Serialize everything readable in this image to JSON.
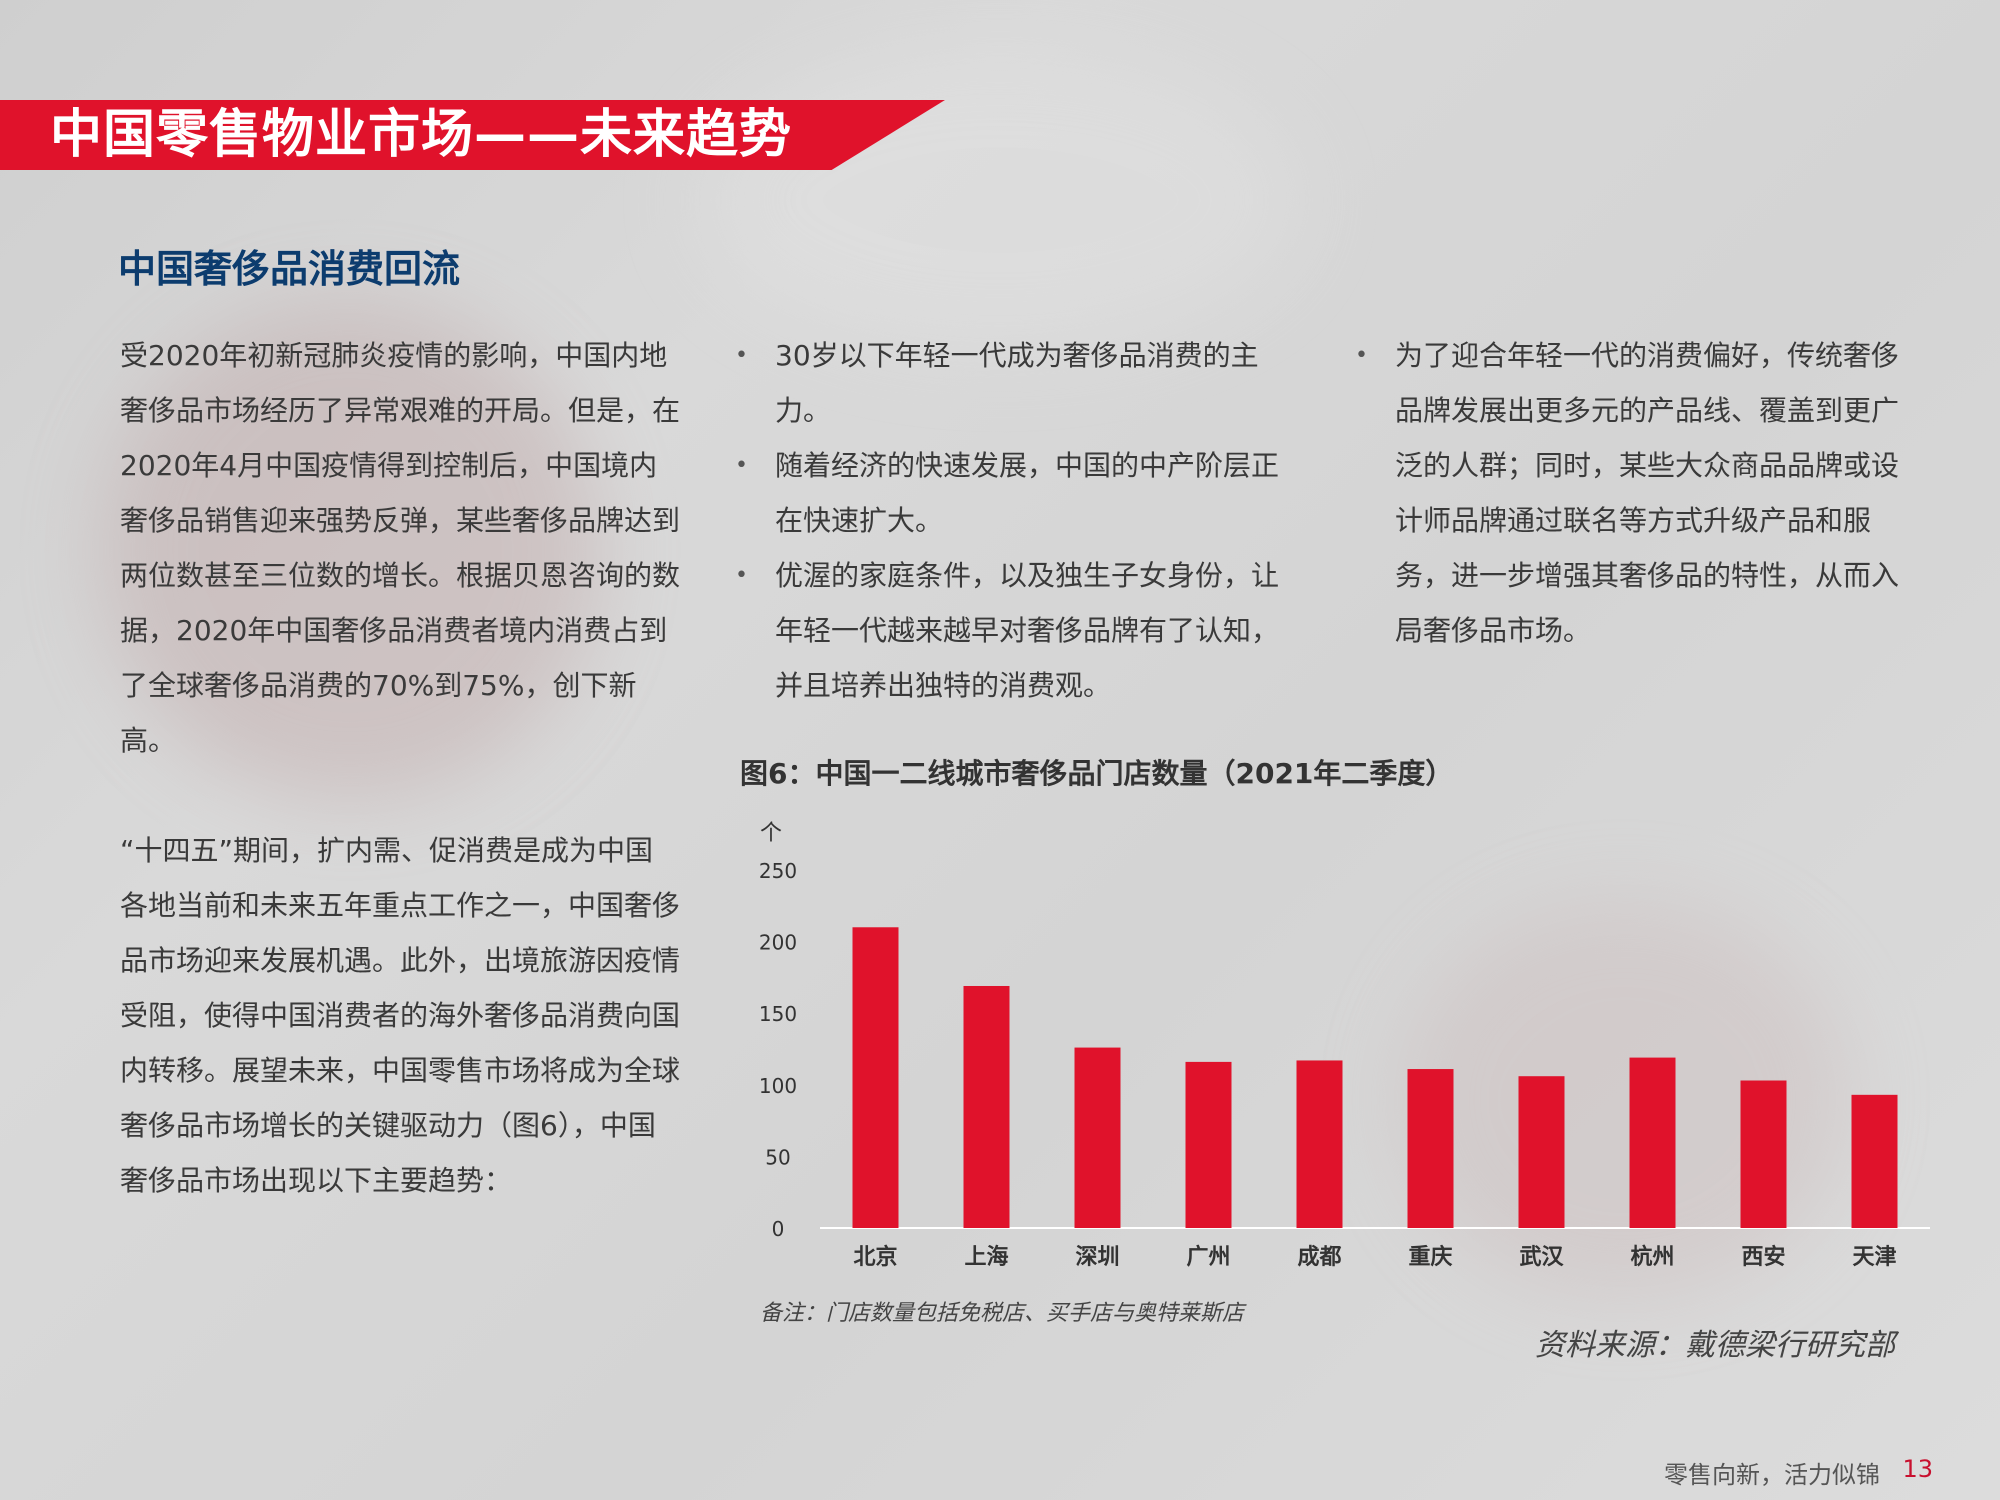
{
  "header": {
    "title": "中国零售物业市场——未来趋势"
  },
  "section": {
    "title": "中国奢侈品消费回流"
  },
  "left_column": {
    "para1": "受2020年初新冠肺炎疫情的影响，中国内地奢侈品市场经历了异常艰难的开局。但是，在2020年4月中国疫情得到控制后，中国境内奢侈品销售迎来强势反弹，某些奢侈品牌达到两位数甚至三位数的增长。根据贝恩咨询的数据，2020年中国奢侈品消费者境内消费占到了全球奢侈品消费的70%到75%，创下新高。",
    "para2": "“十四五”期间，扩内需、促消费是成为中国各地当前和未来五年重点工作之一，中国奢侈品市场迎来发展机遇。此外，出境旅游因疫情受阻，使得中国消费者的海外奢侈品消费向国内转移。展望未来，中国零售市场将成为全球奢侈品市场增长的关键驱动力（图6），中国奢侈品市场出现以下主要趋势："
  },
  "middle_bullets": [
    "30岁以下年轻一代成为奢侈品消费的主力。",
    "随着经济的快速发展，中国的中产阶层正在快速扩大。",
    "优渥的家庭条件，以及独生子女身份，让年轻一代越来越早对奢侈品牌有了认知，并且培养出独特的消费观。"
  ],
  "right_bullets": [
    "为了迎合年轻一代的消费偏好，传统奢侈品牌发展出更多元的产品线、覆盖到更广泛的人群；同时，某些大众商品品牌或设计师品牌通过联名等方式升级产品和服务，进一步增强其奢侈品的特性，从而入局奢侈品市场。"
  ],
  "chart_data": {
    "type": "bar",
    "title": "图6：中国一二线城市奢侈品门店数量（2021年二季度）",
    "ylabel": "个",
    "xlabel": "",
    "categories": [
      "北京",
      "上海",
      "深圳",
      "广州",
      "成都",
      "重庆",
      "武汉",
      "杭州",
      "西安",
      "天津"
    ],
    "values": [
      210,
      169,
      126,
      116,
      117,
      111,
      106,
      119,
      103,
      93
    ],
    "ylim": [
      0,
      250
    ],
    "yticks": [
      0,
      50,
      100,
      150,
      200,
      250
    ],
    "grid": false,
    "bar_color": "#e0122b"
  },
  "chart_note": "备注：门店数量包括免税店、买手店与奥特莱斯店",
  "source": "资料来源：戴德梁行研究部",
  "footer": {
    "tagline": "零售向新，活力似锦",
    "page": "13"
  },
  "colors": {
    "accent": "#e0122b",
    "heading": "#0c3c6e"
  }
}
